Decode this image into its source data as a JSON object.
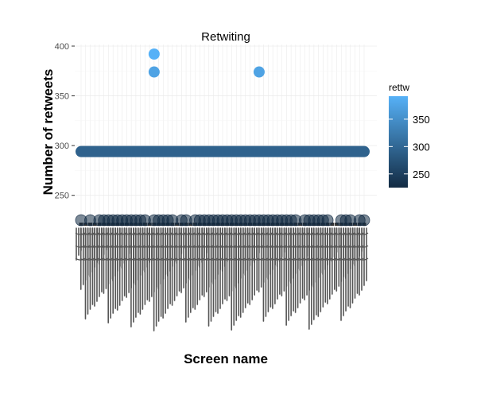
{
  "chart_data": {
    "type": "scatter",
    "title": "Retwiting",
    "xlabel": "Screen name",
    "ylabel": "Number of retweets",
    "ylim": [
      225,
      400
    ],
    "y_ticks": [
      250,
      300,
      350,
      400
    ],
    "grid": true,
    "x_tick_labels": "illegible (dense overlapping screen names)",
    "legend": {
      "title": "rettw",
      "position": "right",
      "ticks": [
        250,
        300,
        350
      ],
      "range": [
        225,
        392
      ],
      "color_low": "#132B43",
      "color_high": "#56B1F7"
    },
    "highlighted_points": [
      {
        "x_index": 16,
        "y": 392
      },
      {
        "x_index": 16,
        "y": 374
      },
      {
        "x_index": 39,
        "y": 374
      }
    ],
    "band": {
      "y": 294,
      "from_index": 0,
      "to_index": 62
    },
    "baseline_y": 225,
    "baseline_indices": [
      0,
      2,
      4,
      5,
      6,
      7,
      8,
      9,
      10,
      11,
      12,
      13,
      14,
      16,
      17,
      18,
      19,
      20,
      22,
      23,
      25,
      26,
      27,
      28,
      29,
      30,
      31,
      32,
      33,
      34,
      35,
      36,
      37,
      38,
      39,
      40,
      41,
      42,
      43,
      44,
      45,
      46,
      47,
      49,
      50,
      51,
      52,
      53,
      54,
      57,
      58,
      59,
      61,
      62
    ],
    "n_categories": 63
  }
}
